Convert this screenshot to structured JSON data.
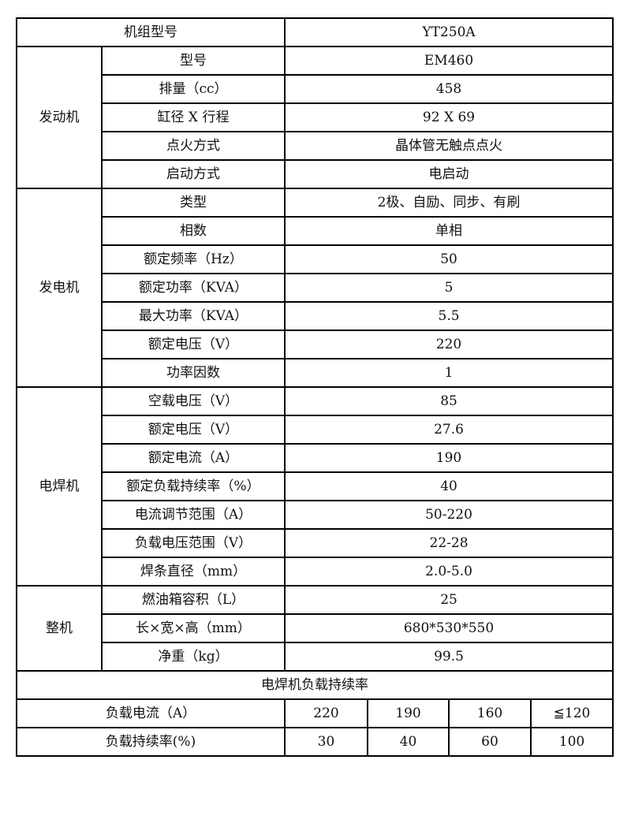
{
  "header": {
    "label": "机组型号",
    "value": "YT250A"
  },
  "groups": [
    {
      "name": "发动机",
      "rows": [
        [
          "型号",
          "EM460"
        ],
        [
          "排量（cc）",
          "458"
        ],
        [
          "缸径 X 行程",
          "92 X 69"
        ],
        [
          "点火方式",
          "晶体管无触点点火"
        ],
        [
          "启动方式",
          "电启动"
        ]
      ]
    },
    {
      "name": "发电机",
      "rows": [
        [
          "类型",
          "2极、自励、同步、有刷"
        ],
        [
          "相数",
          "单相"
        ],
        [
          "额定频率（Hz）",
          "50"
        ],
        [
          "额定功率（KVA）",
          "5"
        ],
        [
          "最大功率（KVA）",
          "5.5"
        ],
        [
          "额定电压（V）",
          "220"
        ],
        [
          "功率因数",
          "1"
        ]
      ]
    },
    {
      "name": "电焊机",
      "rows": [
        [
          "空载电压（V）",
          "85"
        ],
        [
          "额定电压（V）",
          "27.6"
        ],
        [
          "额定电流（A）",
          "190"
        ],
        [
          "额定负载持续率（%）",
          "40"
        ],
        [
          "电流调节范围（A）",
          "50-220"
        ],
        [
          "负载电压范围（V）",
          "22-28"
        ],
        [
          "焊条直径（mm）",
          "2.0-5.0"
        ]
      ]
    },
    {
      "name": "整机",
      "rows": [
        [
          "燃油箱容积（L）",
          "25"
        ],
        [
          "长×宽×高（mm）",
          "680*530*550"
        ],
        [
          "净重（kg）",
          "99.5"
        ]
      ]
    }
  ],
  "duty_cycle": {
    "title": "电焊机负载持续率",
    "rows": [
      {
        "label": "负载电流（A）",
        "values": [
          "220",
          "190",
          "160",
          "≦120"
        ]
      },
      {
        "label": "负载持续率(%)",
        "values": [
          "30",
          "40",
          "60",
          "100"
        ]
      }
    ]
  }
}
